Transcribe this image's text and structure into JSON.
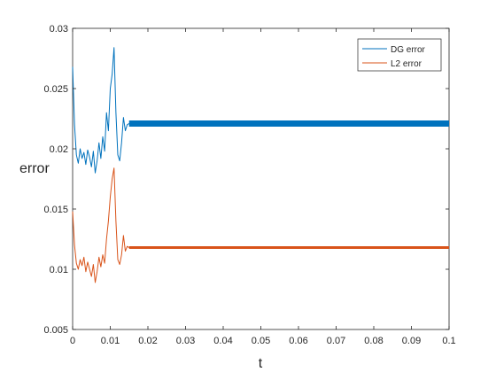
{
  "chart_data": {
    "type": "line",
    "xlabel": "t",
    "ylabel": "error",
    "xlim": [
      0,
      0.1
    ],
    "ylim": [
      0.005,
      0.03
    ],
    "x_ticks": [
      "0",
      "0.01",
      "0.02",
      "0.03",
      "0.04",
      "0.05",
      "0.06",
      "0.07",
      "0.08",
      "0.09",
      "0.1"
    ],
    "y_ticks": [
      "0.005",
      "0.01",
      "0.015",
      "0.02",
      "0.025",
      "0.03"
    ],
    "grid": false,
    "legend_position": "top-right",
    "series": [
      {
        "name": "DG error",
        "color": "#0072BD",
        "x": [
          0,
          0.0005,
          0.001,
          0.0015,
          0.002,
          0.0025,
          0.003,
          0.0035,
          0.004,
          0.0045,
          0.005,
          0.0055,
          0.006,
          0.0065,
          0.007,
          0.0075,
          0.008,
          0.0085,
          0.009,
          0.0095,
          0.01,
          0.0105,
          0.011,
          0.0115,
          0.012,
          0.0125,
          0.013,
          0.0135,
          0.014,
          0.0145,
          0.015,
          0.02,
          0.03,
          0.04,
          0.05,
          0.06,
          0.07,
          0.08,
          0.09,
          0.1
        ],
        "y": [
          0.0268,
          0.022,
          0.0195,
          0.0188,
          0.02,
          0.0192,
          0.0197,
          0.0187,
          0.0199,
          0.0193,
          0.0185,
          0.0198,
          0.018,
          0.019,
          0.0205,
          0.0192,
          0.021,
          0.0198,
          0.023,
          0.0215,
          0.025,
          0.0262,
          0.0284,
          0.023,
          0.0195,
          0.019,
          0.0205,
          0.0226,
          0.0215,
          0.022,
          0.0221,
          0.0221,
          0.0221,
          0.0221,
          0.0221,
          0.0221,
          0.0221,
          0.0221,
          0.0221,
          0.0221
        ]
      },
      {
        "name": "L2 error",
        "color": "#D95319",
        "x": [
          0,
          0.0005,
          0.001,
          0.0015,
          0.002,
          0.0025,
          0.003,
          0.0035,
          0.004,
          0.0045,
          0.005,
          0.0055,
          0.006,
          0.0065,
          0.007,
          0.0075,
          0.008,
          0.0085,
          0.009,
          0.0095,
          0.01,
          0.0105,
          0.011,
          0.0115,
          0.012,
          0.0125,
          0.013,
          0.0135,
          0.014,
          0.0145,
          0.015,
          0.02,
          0.03,
          0.04,
          0.05,
          0.06,
          0.07,
          0.08,
          0.09,
          0.1
        ],
        "y": [
          0.0148,
          0.012,
          0.0105,
          0.01,
          0.0108,
          0.0103,
          0.011,
          0.0098,
          0.0106,
          0.01,
          0.0094,
          0.0104,
          0.0089,
          0.0098,
          0.011,
          0.0102,
          0.0112,
          0.0105,
          0.0125,
          0.014,
          0.016,
          0.0175,
          0.0184,
          0.014,
          0.0108,
          0.0104,
          0.0112,
          0.0128,
          0.0115,
          0.0119,
          0.0118,
          0.0118,
          0.0118,
          0.0118,
          0.0118,
          0.0118,
          0.0118,
          0.0118,
          0.0118,
          0.0118
        ]
      }
    ]
  }
}
